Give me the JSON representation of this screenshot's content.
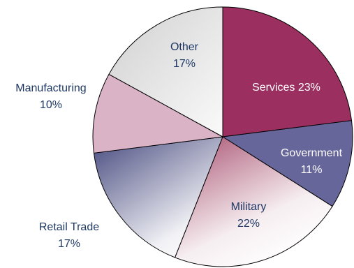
{
  "chart_data": {
    "type": "pie",
    "title": "",
    "slices": [
      {
        "name": "Services",
        "value": 23,
        "label": "Services 23%",
        "color": "#9b3060"
      },
      {
        "name": "Government",
        "value": 11,
        "label_name": "Government",
        "label_value": "11%",
        "color": "#66669a"
      },
      {
        "name": "Military",
        "value": 22,
        "label_name": "Military",
        "label_value": "22%",
        "color": "#a8506f"
      },
      {
        "name": "Retail Trade",
        "value": 17,
        "label_name": "Retail Trade",
        "label_value": "17%",
        "color": "#5a5d8c"
      },
      {
        "name": "Manufacturing",
        "value": 10,
        "label_name": "Manufacturing",
        "label_value": "10%",
        "color": "#dbb3c6"
      },
      {
        "name": "Other",
        "value": 17,
        "label_name": "Other",
        "label_value": "17%",
        "color": "#d9d9d9"
      }
    ]
  }
}
